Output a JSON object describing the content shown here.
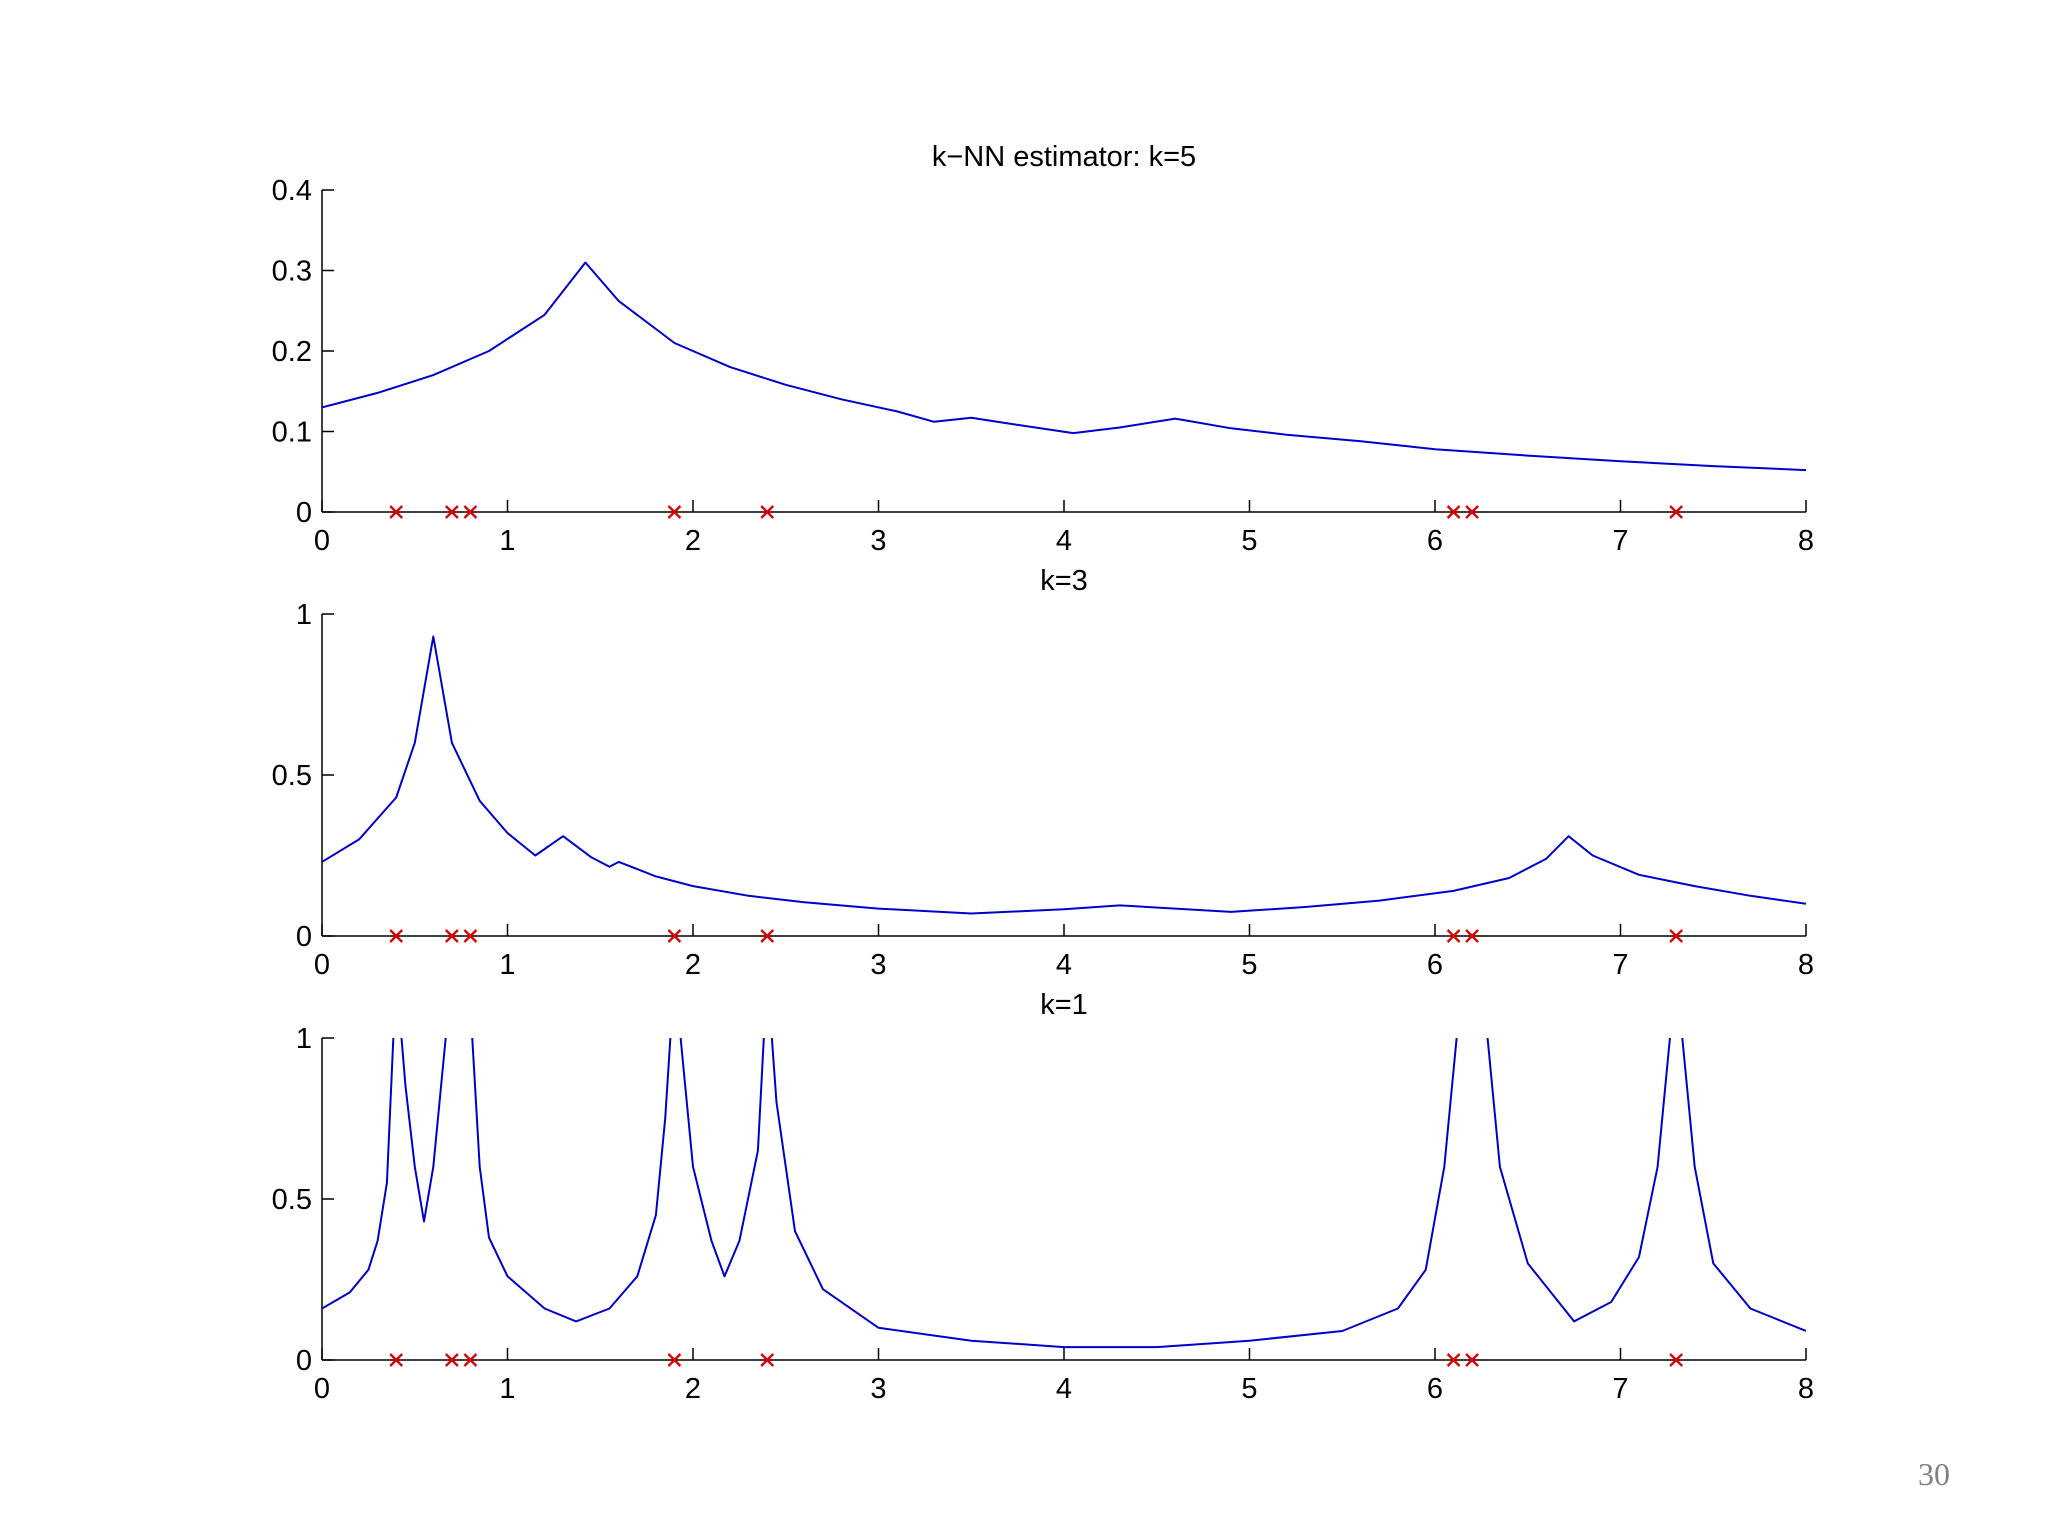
{
  "slide": {
    "page_number": "30"
  },
  "colors": {
    "line": "#0000cc",
    "marker": "#e00000",
    "axis": "#000000"
  },
  "chart_data": [
    {
      "type": "line",
      "title": "k−NN estimator: k=5",
      "k": 5,
      "xlim": [
        0,
        8
      ],
      "ylim": [
        0,
        0.4
      ],
      "xticks": [
        0,
        1,
        2,
        3,
        4,
        5,
        6,
        7,
        8
      ],
      "yticks": [
        0,
        0.1,
        0.2,
        0.3,
        0.4
      ],
      "xtick_labels": [
        "0",
        "1",
        "2",
        "3",
        "4",
        "5",
        "6",
        "7",
        "8"
      ],
      "ytick_labels": [
        "0",
        "0.1",
        "0.2",
        "0.3",
        "0.4"
      ],
      "samples": [
        0.4,
        0.7,
        0.8,
        1.9,
        2.4,
        6.1,
        6.2,
        7.3
      ],
      "series": [
        {
          "x": [
            0,
            0.3,
            0.6,
            0.9,
            1.2,
            1.42,
            1.6,
            1.9,
            2.2,
            2.5,
            2.8,
            3.1,
            3.3,
            3.5,
            3.7,
            4.05,
            4.3,
            4.6,
            4.9,
            5.2,
            5.6,
            6.0,
            6.5,
            7.0,
            7.5,
            8.0
          ],
          "y": [
            0.13,
            0.148,
            0.17,
            0.2,
            0.245,
            0.31,
            0.262,
            0.21,
            0.18,
            0.158,
            0.14,
            0.125,
            0.112,
            0.117,
            0.11,
            0.098,
            0.105,
            0.116,
            0.104,
            0.096,
            0.088,
            0.078,
            0.07,
            0.063,
            0.057,
            0.052
          ]
        }
      ]
    },
    {
      "type": "line",
      "title": "k=3",
      "k": 3,
      "xlim": [
        0,
        8
      ],
      "ylim": [
        0,
        1
      ],
      "xticks": [
        0,
        1,
        2,
        3,
        4,
        5,
        6,
        7,
        8
      ],
      "yticks": [
        0,
        0.5,
        1
      ],
      "xtick_labels": [
        "0",
        "1",
        "2",
        "3",
        "4",
        "5",
        "6",
        "7",
        "8"
      ],
      "ytick_labels": [
        "0",
        "0.5",
        "1"
      ],
      "samples": [
        0.4,
        0.7,
        0.8,
        1.9,
        2.4,
        6.1,
        6.2,
        7.3
      ],
      "series": [
        {
          "x": [
            0,
            0.2,
            0.4,
            0.5,
            0.6,
            0.7,
            0.85,
            1.0,
            1.15,
            1.3,
            1.45,
            1.55,
            1.6,
            1.8,
            2.0,
            2.3,
            2.6,
            3.0,
            3.5,
            4.0,
            4.3,
            4.6,
            4.9,
            5.3,
            5.7,
            6.1,
            6.4,
            6.6,
            6.72,
            6.85,
            7.1,
            7.4,
            7.7,
            8.0
          ],
          "y": [
            0.23,
            0.3,
            0.43,
            0.6,
            0.93,
            0.6,
            0.42,
            0.32,
            0.25,
            0.31,
            0.245,
            0.215,
            0.23,
            0.185,
            0.155,
            0.125,
            0.105,
            0.085,
            0.07,
            0.083,
            0.095,
            0.085,
            0.075,
            0.09,
            0.11,
            0.14,
            0.18,
            0.24,
            0.31,
            0.25,
            0.19,
            0.155,
            0.125,
            0.1
          ]
        }
      ]
    },
    {
      "type": "line",
      "title": "k=1",
      "k": 1,
      "xlim": [
        0,
        8
      ],
      "ylim": [
        0,
        1
      ],
      "xticks": [
        0,
        1,
        2,
        3,
        4,
        5,
        6,
        7,
        8
      ],
      "yticks": [
        0,
        0.5,
        1
      ],
      "xtick_labels": [
        "0",
        "1",
        "2",
        "3",
        "4",
        "5",
        "6",
        "7",
        "8"
      ],
      "ytick_labels": [
        "0",
        "0.5",
        "1"
      ],
      "samples": [
        0.4,
        0.7,
        0.8,
        1.9,
        2.4,
        6.1,
        6.2,
        7.3
      ],
      "series": [
        {
          "x": [
            0,
            0.15,
            0.25,
            0.3,
            0.35,
            0.4,
            0.45,
            0.5,
            0.55,
            0.6,
            0.65,
            0.7,
            0.8,
            0.85,
            0.9,
            1.0,
            1.2,
            1.37,
            1.55,
            1.7,
            1.8,
            1.85,
            1.9,
            1.95,
            2.0,
            2.1,
            2.17,
            2.25,
            2.35,
            2.4,
            2.45,
            2.55,
            2.7,
            3.0,
            3.5,
            4.0,
            4.5,
            5.0,
            5.5,
            5.8,
            5.95,
            6.05,
            6.15,
            6.25,
            6.35,
            6.5,
            6.75,
            6.95,
            7.1,
            7.2,
            7.3,
            7.4,
            7.5,
            7.7,
            8.0
          ],
          "y": [
            0.16,
            0.21,
            0.28,
            0.37,
            0.55,
            1.2,
            0.85,
            0.6,
            0.43,
            0.6,
            0.9,
            1.2,
            1.1,
            0.6,
            0.38,
            0.26,
            0.16,
            0.12,
            0.16,
            0.26,
            0.45,
            0.75,
            1.2,
            0.9,
            0.6,
            0.37,
            0.26,
            0.37,
            0.65,
            1.2,
            0.8,
            0.4,
            0.22,
            0.1,
            0.06,
            0.04,
            0.04,
            0.06,
            0.09,
            0.16,
            0.28,
            0.6,
            1.2,
            1.2,
            0.6,
            0.3,
            0.12,
            0.18,
            0.32,
            0.6,
            1.2,
            0.6,
            0.3,
            0.16,
            0.09
          ]
        }
      ]
    }
  ]
}
